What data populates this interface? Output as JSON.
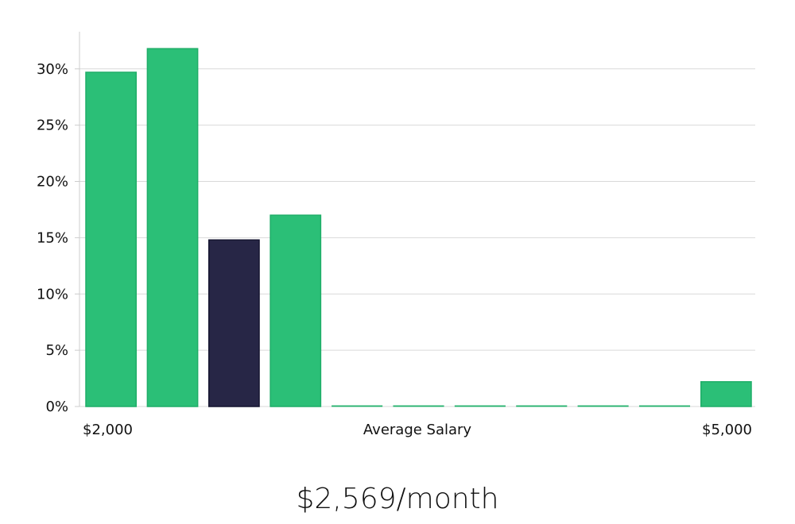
{
  "chart_data": {
    "type": "bar",
    "title": "",
    "xlabel": "Average Salary",
    "x_min_label": "$2,000",
    "x_max_label": "$5,000",
    "ylabel": "",
    "ylim": [
      0,
      33.3
    ],
    "yticks": [
      0,
      5,
      10,
      15,
      20,
      25,
      30
    ],
    "ytick_labels": [
      "0%",
      "5%",
      "10%",
      "15%",
      "20%",
      "25%",
      "30%"
    ],
    "grid": true,
    "values": [
      29.7,
      31.8,
      14.8,
      17.0,
      0,
      0,
      0,
      0,
      0,
      0,
      2.2
    ],
    "highlight_index": 2,
    "colors": {
      "bar": "#2bbf77",
      "bar_border": "#1fae68",
      "highlight": "#272646",
      "grid": "#d9d9d9",
      "axis": "#cccccc"
    }
  },
  "summary": {
    "salary_text": "$2,569/month"
  }
}
